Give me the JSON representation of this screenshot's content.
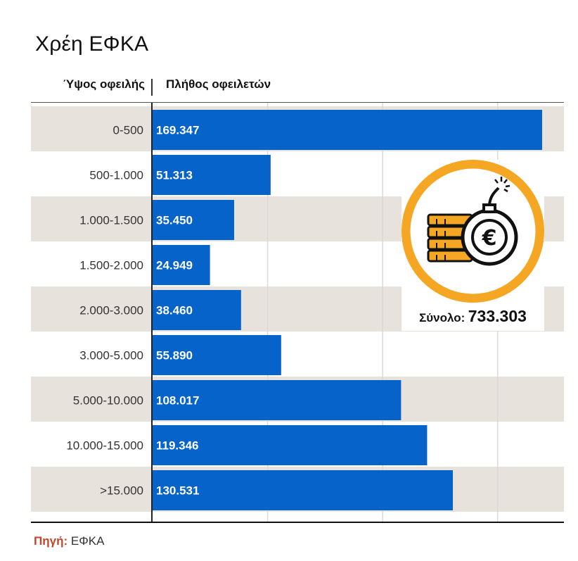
{
  "title": "Χρέη ΕΦΚΑ",
  "header": {
    "category_label": "Ύψος οφειλής",
    "value_label": "Πλήθος οφειλετών"
  },
  "chart_data": {
    "type": "bar",
    "orientation": "horizontal",
    "categories": [
      "0-500",
      "500-1.000",
      "1.000-1.500",
      "1.500-2.000",
      "2.000-3.000",
      "3.000-5.000",
      "5.000-10.000",
      "10.000-15.000",
      ">15.000"
    ],
    "values": [
      169347,
      51313,
      35450,
      24949,
      38460,
      55890,
      108017,
      119346,
      130531
    ],
    "value_labels": [
      "169.347",
      "51.313",
      "35.450",
      "24.949",
      "38.460",
      "55.890",
      "108.017",
      "119.346",
      "130.531"
    ],
    "xlim": [
      0,
      178000
    ],
    "grid": true,
    "bar_color": "#0563c9",
    "band_color": "#e7e2db"
  },
  "total": {
    "label": "Σύνολο:",
    "value": "733.303",
    "icon": "euro-bomb-coins-icon",
    "ring_color": "#f5a623"
  },
  "source": {
    "label": "Πηγή:",
    "value": "ΕΦΚΑ"
  }
}
